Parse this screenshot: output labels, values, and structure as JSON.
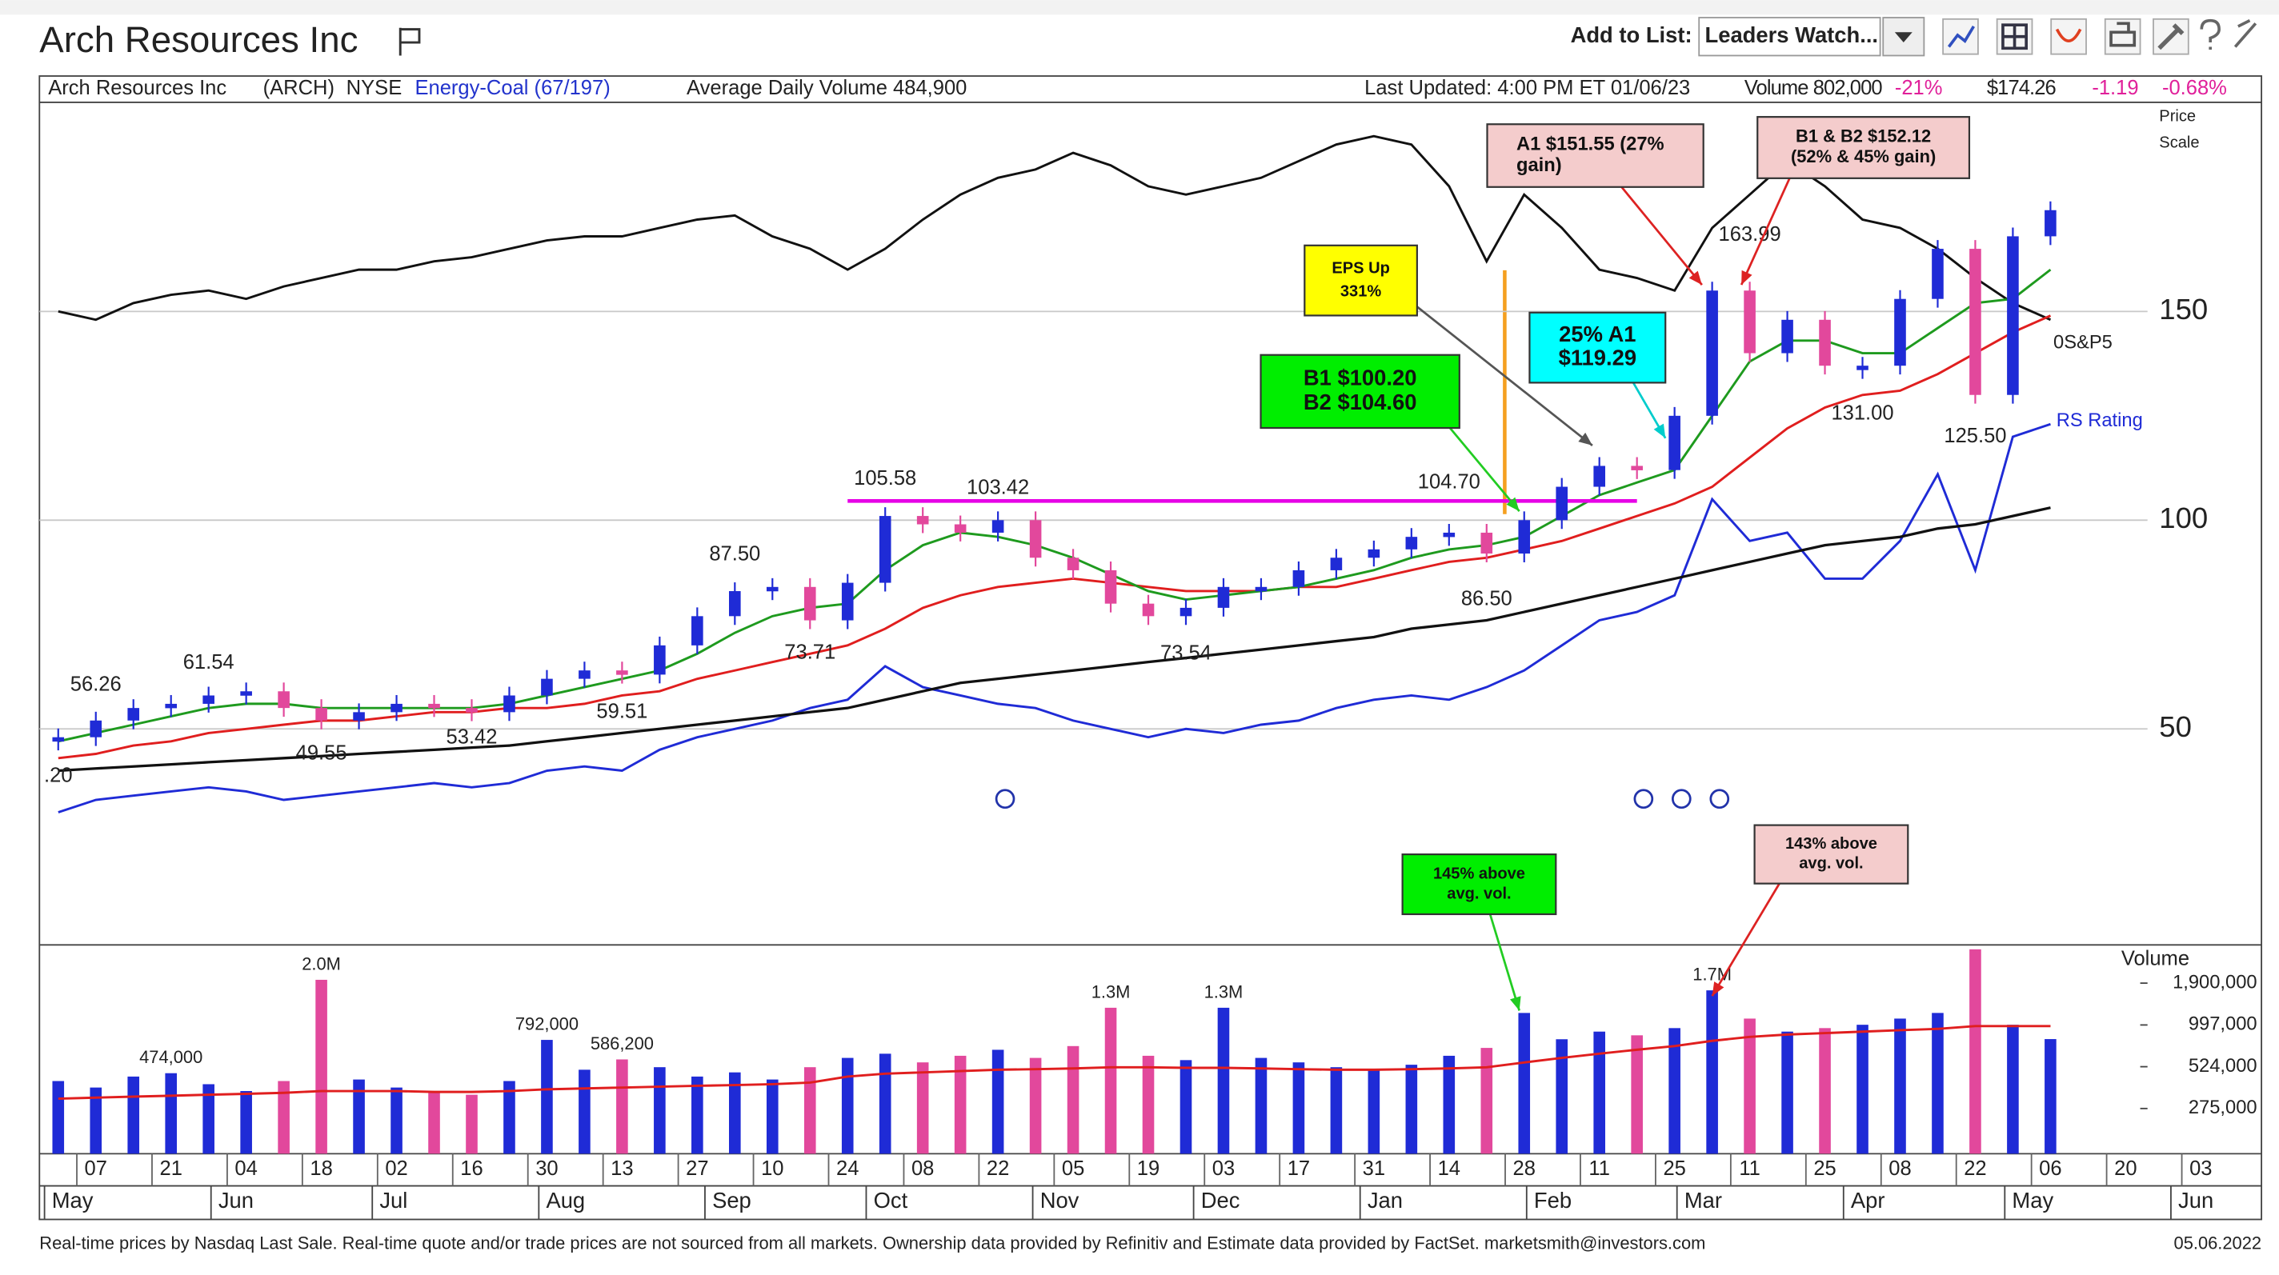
{
  "header": {
    "title": "Arch Resources Inc",
    "add_to_list": "Add to List:",
    "list_name": "Leaders Watch..."
  },
  "info_bar": {
    "name": "Arch Resources Inc",
    "symbol": "(ARCH)",
    "exchange": "NYSE",
    "group": "Energy-Coal (67/197)",
    "avg_volume": "Average Daily Volume 484,900",
    "updated": "Last Updated: 4:00 PM ET 01/06/23",
    "volume": "Volume 802,000",
    "volume_change": "-21%",
    "price": "$174.26",
    "change": "-1.19",
    "change_pct": "-0.68%"
  },
  "chart_data": {
    "type": "stock",
    "categories": [
      null,
      "07",
      null,
      "21",
      null,
      "04",
      null,
      "18",
      null,
      "02",
      null,
      "16",
      null,
      "30",
      null,
      "13",
      null,
      "27",
      null,
      "10",
      null,
      "24",
      null,
      "08",
      null,
      "22",
      null,
      "05",
      null,
      "19",
      null,
      "03",
      null,
      "17",
      null,
      "31",
      null,
      "14",
      null,
      "28",
      null,
      "11",
      null,
      "25",
      null,
      "11",
      null,
      "25",
      null,
      "08",
      null,
      "22",
      null,
      "06",
      null,
      "20",
      null,
      "03"
    ],
    "month_ticks": [
      {
        "value": 0.14,
        "label": "May"
      },
      {
        "value": 4.57,
        "label": "Jun"
      },
      {
        "value": 8.86,
        "label": "Jul"
      },
      {
        "value": 13.29,
        "label": "Aug"
      },
      {
        "value": 17.71,
        "label": "Sep"
      },
      {
        "value": 22.0,
        "label": "Oct"
      },
      {
        "value": 26.43,
        "label": "Nov"
      },
      {
        "value": 30.71,
        "label": "Dec"
      },
      {
        "value": 35.14,
        "label": "Jan"
      },
      {
        "value": 39.57,
        "label": "Feb"
      },
      {
        "value": 43.57,
        "label": "Mar"
      },
      {
        "value": 48.0,
        "label": "Apr"
      },
      {
        "value": 52.29,
        "label": "May"
      },
      {
        "value": 56.71,
        "label": "Jun"
      }
    ],
    "axis_label": [
      "Price",
      "Scale"
    ],
    "ylim": [
      0,
      198
    ],
    "yticks": [
      50,
      100,
      150
    ],
    "grid": true,
    "price": {
      "up_color": "#1f2bd6",
      "down_color": "#e2489c",
      "values": [
        48,
        52,
        55,
        56,
        58,
        59,
        55,
        52,
        54,
        56,
        55,
        54,
        58,
        62,
        64,
        63,
        70,
        77,
        83,
        84,
        76,
        85,
        101,
        99,
        97,
        100,
        91,
        88,
        80,
        77,
        79,
        84,
        84,
        88,
        91,
        93,
        96,
        97,
        92,
        100,
        108,
        113,
        112,
        125,
        155,
        140,
        148,
        137,
        137,
        153,
        165,
        130,
        168,
        174.26,
        null,
        null,
        null,
        null
      ]
    },
    "ma_21": {
      "color": "#1e9a1e",
      "values": [
        47,
        49,
        51,
        53,
        55,
        56,
        56,
        55,
        55,
        55,
        55,
        55,
        56,
        58,
        60,
        62,
        64,
        68,
        73,
        77,
        79,
        80,
        88,
        94,
        97,
        96,
        94,
        91,
        87,
        83,
        81,
        82,
        83,
        84,
        86,
        88,
        91,
        93,
        94,
        96,
        101,
        106,
        109,
        112,
        125,
        138,
        143,
        143,
        140,
        140,
        146,
        152,
        153,
        160,
        null,
        null,
        null,
        null
      ]
    },
    "ma_50": {
      "color": "#e01e1e",
      "values": [
        43,
        44,
        46,
        47,
        49,
        50,
        51,
        52,
        52,
        53,
        54,
        54,
        55,
        55,
        56,
        58,
        59,
        62,
        64,
        66,
        68,
        70,
        74,
        79,
        82,
        84,
        85,
        86,
        85,
        84,
        83,
        83,
        83,
        84,
        84,
        86,
        88,
        90,
        91,
        93,
        95,
        98,
        101,
        104,
        108,
        115,
        122,
        127,
        130,
        131,
        135,
        140,
        145,
        149,
        null,
        null,
        null,
        null
      ]
    },
    "ma_200": {
      "color": "#111111",
      "values": [
        40,
        40.5,
        41,
        41.5,
        42,
        42.5,
        43,
        43.5,
        44,
        44.5,
        45,
        45.5,
        46,
        47,
        48,
        49,
        50,
        51,
        52,
        53,
        54,
        55,
        57,
        59,
        61,
        62,
        63,
        64,
        65,
        66,
        67,
        68,
        69,
        70,
        71,
        72,
        74,
        75,
        76,
        78,
        80,
        82,
        84,
        86,
        88,
        90,
        92,
        94,
        95,
        96,
        98,
        99,
        101,
        103,
        null,
        null,
        null,
        null
      ]
    },
    "rs_line": {
      "name": "RS Rating",
      "color": "#1f2bd6",
      "values": [
        30,
        33,
        34,
        35,
        36,
        35,
        33,
        34,
        35,
        36,
        37,
        36,
        37,
        40,
        41,
        40,
        45,
        48,
        50,
        52,
        55,
        57,
        65,
        60,
        58,
        56,
        55,
        52,
        50,
        48,
        50,
        49,
        51,
        52,
        55,
        57,
        58,
        57,
        60,
        64,
        70,
        76,
        78,
        82,
        105,
        95,
        97,
        86,
        86,
        95,
        111,
        88,
        120,
        123,
        null,
        null,
        null,
        null
      ]
    },
    "sp500_line": {
      "name": "0S&P5",
      "color": "#111111",
      "values": [
        150,
        148,
        152,
        154,
        155,
        153,
        156,
        158,
        160,
        160,
        162,
        163,
        165,
        167,
        168,
        168,
        170,
        172,
        173,
        168,
        165,
        160,
        165,
        172,
        178,
        182,
        184,
        188,
        185,
        180,
        178,
        180,
        182,
        186,
        190,
        192,
        190,
        180,
        162,
        178,
        170,
        160,
        158,
        155,
        170,
        178,
        186,
        180,
        172,
        170,
        165,
        158,
        152,
        148,
        null,
        null,
        null,
        null
      ]
    },
    "price_labels": [
      {
        "index": 0,
        "value": 44.2,
        "label": ".20"
      },
      {
        "index": 1,
        "value": 56.26
      },
      {
        "index": 4,
        "value": 61.54
      },
      {
        "index": 7,
        "value": 49.55
      },
      {
        "index": 11,
        "value": 53.42
      },
      {
        "index": 15,
        "value": 59.51
      },
      {
        "index": 18,
        "value": 87.5,
        "label": "87.50"
      },
      {
        "index": 20,
        "value": 73.71
      },
      {
        "index": 22,
        "value": 105.58
      },
      {
        "index": 25,
        "value": 103.42
      },
      {
        "index": 30,
        "value": 73.54
      },
      {
        "index": 37,
        "value": 104.7,
        "label": "104.70"
      },
      {
        "index": 38,
        "value": 86.5,
        "label": "86.50"
      },
      {
        "index": 45,
        "value": 163.99
      },
      {
        "index": 48,
        "value": 131,
        "label": "131.00"
      },
      {
        "index": 51,
        "value": 125.5,
        "label": "125.50"
      }
    ],
    "pivot_line": {
      "value": 104.6,
      "from": 21,
      "to": 42,
      "color": "#e600e6"
    },
    "volume": {
      "label": "Volume",
      "log": true,
      "ylim": [
        137000,
        3350000
      ],
      "yticks": [
        {
          "value": 275000,
          "label": "275,000"
        },
        {
          "value": 524000,
          "label": "524,000"
        },
        {
          "value": 997000,
          "label": "997,000"
        },
        {
          "value": 1900000,
          "label": "1,900,000"
        }
      ],
      "values": [
        420000,
        380000,
        450000,
        474000,
        400000,
        360000,
        420000,
        2000000,
        430000,
        380000,
        350000,
        340000,
        420000,
        792000,
        500000,
        586200,
        520000,
        450000,
        480000,
        430000,
        520000,
        600000,
        640000,
        560000,
        620000,
        680000,
        600000,
        720000,
        1300000,
        620000,
        580000,
        1300000,
        600000,
        560000,
        520000,
        500000,
        540000,
        620000,
        700000,
        1200000,
        800000,
        900000,
        850000,
        950000,
        1700000,
        1100000,
        900000,
        950000,
        1000000,
        1100000,
        1200000,
        3200000,
        1000000,
        802000,
        null,
        null,
        null,
        null
      ],
      "value_labels": [
        null,
        null,
        null,
        "474,000",
        null,
        null,
        null,
        "2.0M",
        null,
        null,
        null,
        null,
        null,
        "792,000",
        null,
        "586,200",
        null,
        null,
        null,
        null,
        null,
        null,
        null,
        null,
        null,
        null,
        null,
        null,
        "1.3M",
        null,
        null,
        "1.3M",
        null,
        null,
        null,
        null,
        null,
        null,
        null,
        null,
        null,
        null,
        null,
        null,
        "1.7M",
        null,
        null,
        null,
        null,
        null,
        null,
        null,
        null,
        null,
        null,
        null,
        null,
        null
      ],
      "avg": {
        "color": "#e01e1e",
        "values": [
          320000,
          325000,
          330000,
          335000,
          340000,
          345000,
          350000,
          360000,
          360000,
          360000,
          355000,
          355000,
          360000,
          370000,
          375000,
          380000,
          385000,
          390000,
          395000,
          400000,
          410000,
          450000,
          470000,
          480000,
          490000,
          500000,
          505000,
          510000,
          520000,
          520000,
          515000,
          515000,
          510000,
          505000,
          500000,
          500000,
          505000,
          510000,
          520000,
          560000,
          600000,
          640000,
          680000,
          720000,
          780000,
          830000,
          860000,
          880000,
          900000,
          920000,
          940000,
          980000,
          980000,
          980000,
          null,
          null,
          null,
          null
        ]
      }
    }
  },
  "annotations": [
    {
      "lines": [
        "EPS Up",
        "331%"
      ],
      "color": "#ffff00"
    },
    {
      "lines": [
        "B1 $100.20",
        "B2 $104.60"
      ],
      "color": "#00ee00"
    },
    {
      "lines": [
        "25% A1",
        "$119.29"
      ],
      "color": "#00ffff"
    },
    {
      "lines": [
        "A1 $151.55 (27%",
        "gain)"
      ],
      "color": "#f4cccc"
    },
    {
      "lines": [
        "B1 & B2 $152.12",
        "(52% & 45% gain)"
      ],
      "color": "#f4cccc"
    },
    {
      "lines": [
        "145% above",
        "avg. vol."
      ],
      "color": "#00ee00"
    },
    {
      "lines": [
        "143% above",
        "avg. vol."
      ],
      "color": "#f4cccc"
    }
  ],
  "footer": {
    "disclaimer": "Real-time prices by Nasdaq Last Sale. Real-time quote and/or trade prices are not sourced from all markets. Ownership data provided by Refinitiv and Estimate data provided by FactSet. marketsmith@investors.com",
    "date": "05.06.2022"
  }
}
